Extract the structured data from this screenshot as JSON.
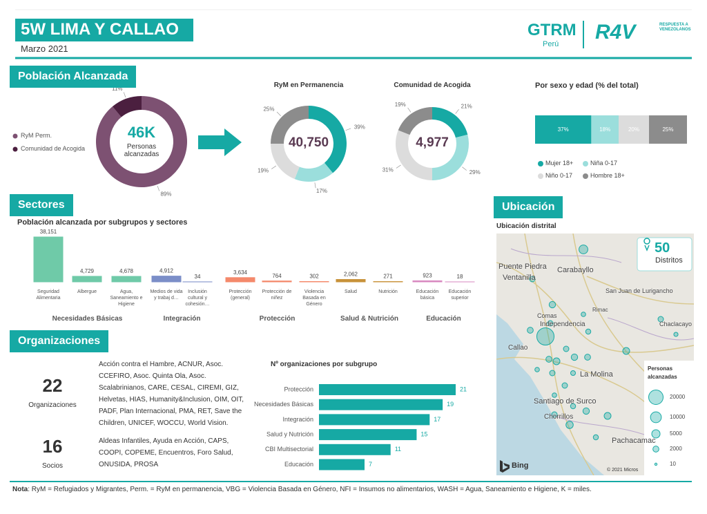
{
  "header": {
    "title": "5W LIMA Y CALLAO",
    "date": "Marzo 2021",
    "gtrm": "GTRM",
    "peru": "Perú",
    "r4v": "R4V",
    "r4v_text": "RESPUESTA A VENEZOLANOS"
  },
  "poblacion": {
    "heading": "Población Alcanzada",
    "total": {
      "type": "donut",
      "center": "46K",
      "center_label": "Personas",
      "center_sublabel": "alcanzadas",
      "categories": [
        "RyM Perm.",
        "Comunidad de Acogida"
      ],
      "values": [
        89,
        11
      ],
      "value_labels": [
        "89%",
        "11%"
      ],
      "colors": [
        "#7d5172",
        "#4b1f3f"
      ]
    },
    "rym": {
      "type": "donut",
      "title": "RyM en Permanencia",
      "center": "40,750",
      "categories": [
        "Mujer 18+",
        "Niña 0-17",
        "Niño 0-17",
        "Hombre 18+"
      ],
      "values": [
        39,
        17,
        19,
        25
      ],
      "value_labels": [
        "39%",
        "17%",
        "19%",
        "25%"
      ],
      "colors": [
        "#16a9a4",
        "#9bdedc",
        "#dcdcdc",
        "#8c8c8c"
      ]
    },
    "comunidad": {
      "type": "donut",
      "title": "Comunidad de Acogida",
      "center": "4,977",
      "categories": [
        "Mujer 18+",
        "Niña 0-17",
        "Niño 0-17",
        "Hombre 18+"
      ],
      "values": [
        21,
        29,
        31,
        19
      ],
      "value_labels": [
        "21%",
        "29%",
        "31%",
        "19%"
      ],
      "colors": [
        "#16a9a4",
        "#9bdedc",
        "#dcdcdc",
        "#8c8c8c"
      ]
    },
    "sexo": {
      "type": "stacked_bar",
      "title": "Por sexo y edad (% del total)",
      "categories": [
        "Mujer 18+",
        "Niña 0-17",
        "Niño 0-17",
        "Hombre 18+"
      ],
      "values": [
        37,
        18,
        20,
        25
      ],
      "value_labels": [
        "37%",
        "18%",
        "20%",
        "25%"
      ],
      "colors": [
        "#16a9a4",
        "#9bdedc",
        "#dcdcdc",
        "#8c8c8c"
      ]
    }
  },
  "sectores": {
    "heading": "Sectores",
    "chart": {
      "type": "bar",
      "title": "Población alcanzada por subgrupos y sectores",
      "groups": [
        {
          "name": "Necesidades Básicas",
          "color": "#6fcaa8",
          "categories": [
            "Seguridad Alimentaria",
            "Albergue",
            "Agua, Saneamiento e Higiene"
          ],
          "values": [
            38151,
            4729,
            4678
          ],
          "value_labels": [
            "38,151",
            "4,729",
            "4,678"
          ]
        },
        {
          "name": "Integración",
          "color": "#7b8ec8",
          "categories": [
            "Medios de vida y trabaj d…",
            "Inclusión cultural y cohesión…"
          ],
          "values": [
            4912,
            34
          ],
          "value_labels": [
            "4,912",
            "34"
          ]
        },
        {
          "name": "Protección",
          "color": "#f4896b",
          "categories": [
            "Protección (general)",
            "Protección de niñez",
            "Violencia Basada en Género"
          ],
          "values": [
            3634,
            764,
            302
          ],
          "value_labels": [
            "3,634",
            "764",
            "302"
          ]
        },
        {
          "name": "Salud & Nutrición",
          "color": "#c8923a",
          "categories": [
            "Salud",
            "Nutrición"
          ],
          "values": [
            2062,
            271
          ],
          "value_labels": [
            "2,062",
            "271"
          ]
        },
        {
          "name": "Educación",
          "color": "#d88ac0",
          "categories": [
            "Educación básica",
            "Educación superior"
          ],
          "values": [
            923,
            18
          ],
          "value_labels": [
            "923",
            "18"
          ]
        }
      ]
    }
  },
  "organizaciones": {
    "heading": "Organizaciones",
    "orgs": {
      "count": 22,
      "label": "Organizaciones",
      "list": "Acción contra el Hambre, ACNUR, Asoc. CCEFIRO, Asoc. Quinta Ola, Asoc. Scalabrinianos, CARE, CESAL, CIREMI, GIZ, Helvetas, HIAS, Humanity&Inclusion, OIM, OIT, PADF, Plan Internacional, PMA, RET, Save the Children, UNICEF, WOCCU, World Vision."
    },
    "socios": {
      "count": 16,
      "label": "Socios",
      "list": "Aldeas Infantiles, Ayuda en Acción, CAPS, COOPI, COPEME, Encuentros, Foro Salud, ONUSIDA, PROSA"
    },
    "chart": {
      "type": "hbar",
      "title": "Nº organizaciones por subgrupo",
      "categories": [
        "Protección",
        "Necesidades Básicas",
        "Integración",
        "Salud y Nutrición",
        "CBI Multisectorial",
        "Educación"
      ],
      "values": [
        21,
        19,
        17,
        15,
        11,
        7
      ],
      "color": "#16a9a4"
    }
  },
  "ubicacion": {
    "heading": "Ubicación",
    "subtitle": "Ubicación distrital",
    "districts": 50,
    "districts_label": "Distritos",
    "legend_title": "Personas alcanzadas",
    "legend_values": [
      20000,
      10000,
      5000,
      2000,
      10
    ],
    "bubbles": [
      6000,
      1500,
      2500,
      1500,
      30000,
      2000,
      3000,
      2000,
      2500,
      2000,
      1500,
      800,
      1200,
      3000,
      1500,
      600,
      1500,
      1000,
      1500,
      800,
      1200,
      2500,
      3000,
      3500,
      1500,
      1200,
      800
    ],
    "places": [
      "Puente Piedra",
      "Ventanilla",
      "Carabayllo",
      "San Juan de Lurigancho",
      "Comas",
      "Independencia",
      "Rimac",
      "Callao",
      "La Molina",
      "Santiago de Surco",
      "Chorrillos",
      "Pachacamac",
      "Chaclacayo"
    ],
    "provider": "Bing",
    "copyright": "© 2021 Micros"
  },
  "footer": {
    "note_label": "Nota",
    "note": ": RyM = Refugiados y Migrantes, Perm. = RyM en permanencia, VBG = Violencia Basada en Género, NFI = Insumos no alimentarios, WASH = Agua, Saneamiento e Higiene, K = miles."
  }
}
